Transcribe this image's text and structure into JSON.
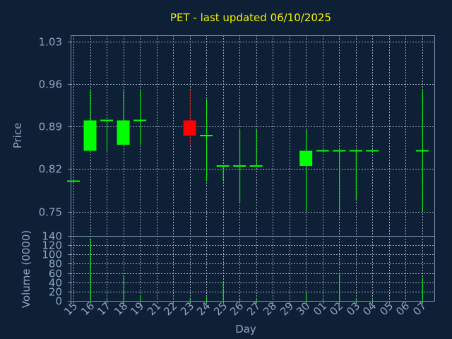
{
  "chart_data": {
    "type": "candlestick",
    "title": "PET - last updated 06/10/2025",
    "xlabel": "Day",
    "ylabel_price": "Price",
    "ylabel_volume": "Volume (0000)",
    "days": [
      "15",
      "16",
      "17",
      "18",
      "19",
      "21",
      "22",
      "23",
      "24",
      "25",
      "26",
      "27",
      "28",
      "29",
      "30",
      "01",
      "02",
      "03",
      "04",
      "05",
      "06",
      "07"
    ],
    "price_ylim": [
      0.71,
      1.04
    ],
    "price_ticks": [
      "0.75",
      "0.82",
      "0.89",
      "0.96",
      "1.03"
    ],
    "volume_ylim": [
      0,
      140
    ],
    "volume_ticks": [
      "0",
      "20",
      "40",
      "60",
      "80",
      "100",
      "120",
      "140"
    ],
    "grid": true,
    "colors": {
      "up": "#00ff00",
      "down": "#ff0000",
      "wick_up": "#00ff00",
      "wick_down": "#cc0000",
      "volume": "#00ff00"
    },
    "candles": [
      {
        "t": 0.0,
        "open": 0.8,
        "close": 0.8,
        "high": 0.8,
        "low": 0.8,
        "volume": 0
      },
      {
        "t": 1.0,
        "open": 0.85,
        "close": 0.9,
        "high": 0.95,
        "low": 0.85,
        "volume": 135
      },
      {
        "t": 2.0,
        "open": 0.9,
        "close": 0.9,
        "high": 0.9,
        "low": 0.85,
        "volume": 3
      },
      {
        "t": 3.0,
        "open": 0.86,
        "close": 0.9,
        "high": 0.95,
        "low": 0.86,
        "volume": 55
      },
      {
        "t": 4.0,
        "open": 0.9,
        "close": 0.9,
        "high": 0.95,
        "low": 0.86,
        "volume": 12
      },
      {
        "t": 7.0,
        "open": 0.9,
        "close": 0.875,
        "high": 0.95,
        "low": 0.86,
        "volume": 5
      },
      {
        "t": 8.0,
        "open": 0.875,
        "close": 0.875,
        "high": 0.935,
        "low": 0.8,
        "volume": 8
      },
      {
        "t": 9.0,
        "open": 0.825,
        "close": 0.825,
        "high": 0.825,
        "low": 0.8,
        "volume": 40
      },
      {
        "t": 10.0,
        "open": 0.825,
        "close": 0.825,
        "high": 0.885,
        "low": 0.765,
        "volume": 3
      },
      {
        "t": 11.0,
        "open": 0.825,
        "close": 0.825,
        "high": 0.885,
        "low": 0.825,
        "volume": 3
      },
      {
        "t": 14.0,
        "open": 0.825,
        "close": 0.85,
        "high": 0.885,
        "low": 0.75,
        "volume": 15
      },
      {
        "t": 15.0,
        "open": 0.85,
        "close": 0.85,
        "high": 0.85,
        "low": 0.85,
        "volume": 2
      },
      {
        "t": 16.0,
        "open": 0.85,
        "close": 0.85,
        "high": 0.85,
        "low": 0.75,
        "volume": 60
      },
      {
        "t": 17.0,
        "open": 0.85,
        "close": 0.85,
        "high": 0.85,
        "low": 0.77,
        "volume": 5
      },
      {
        "t": 18.0,
        "open": 0.85,
        "close": 0.85,
        "high": 0.85,
        "low": 0.85,
        "volume": 2
      },
      {
        "t": 21.0,
        "open": 0.85,
        "close": 0.85,
        "high": 0.95,
        "low": 0.75,
        "volume": 50
      }
    ]
  }
}
